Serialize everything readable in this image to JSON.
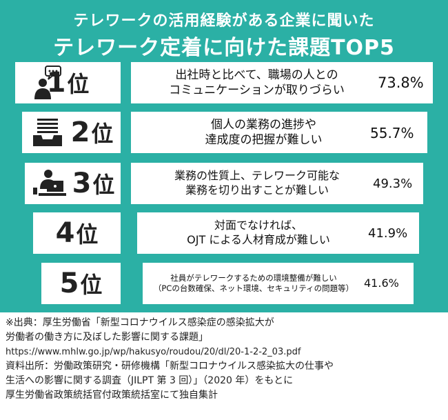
{
  "header": {
    "line1": "テレワークの活用経験がある企業に聞いた",
    "line2": "テレワーク定着に向けた課題TOP5"
  },
  "rank_suffix": "位",
  "items": [
    {
      "rank": "1",
      "line1": "出社時と比べて、職場の人との",
      "line2": "コミュニケーションが取りづらい",
      "pct": "73.8%",
      "icon": "person-speech-bubble-icon"
    },
    {
      "rank": "2",
      "line1": "個人の業務の進捗や",
      "line2": "達成度の把握が難しい",
      "pct": "55.7%",
      "icon": "document-tray-icon"
    },
    {
      "rank": "3",
      "line1": "業務の性質上、テレワーク可能な",
      "line2": "業務を切り出すことが難しい",
      "pct": "49.3%",
      "icon": "person-at-laptop-icon"
    },
    {
      "rank": "4",
      "line1": "対面でなければ、",
      "line2": "OJT による人材育成が難しい",
      "pct": "41.9%"
    },
    {
      "rank": "5",
      "line1": "社員がテレワークするための環境整備が難しい",
      "line2": "（PCの台数確保、ネット環境、セキュリティの問題等）",
      "pct": "41.6%"
    }
  ],
  "source_notes": [
    "※出典：厚生労働省「新型コロナウイルス感染症の感染拡大が",
    "労働者の働き方に及ぼした影響に関する課題」",
    "https://www.mhlw.go.jp/wp/hakusyo/roudou/20/dl/20-1-2-2_03.pdf",
    "資料出所：労働政策研究・研修機構「新型コロナウイルス感染拡大の仕事や",
    "生活への影響に関する調査（JILPT 第 3 回）」（2020 年）をもとに",
    "厚生労働省政策統括官付政策統括室にて独自集計"
  ],
  "colors": {
    "background": "#2bb0a5",
    "box": "#ffffff",
    "text": "#111111"
  }
}
